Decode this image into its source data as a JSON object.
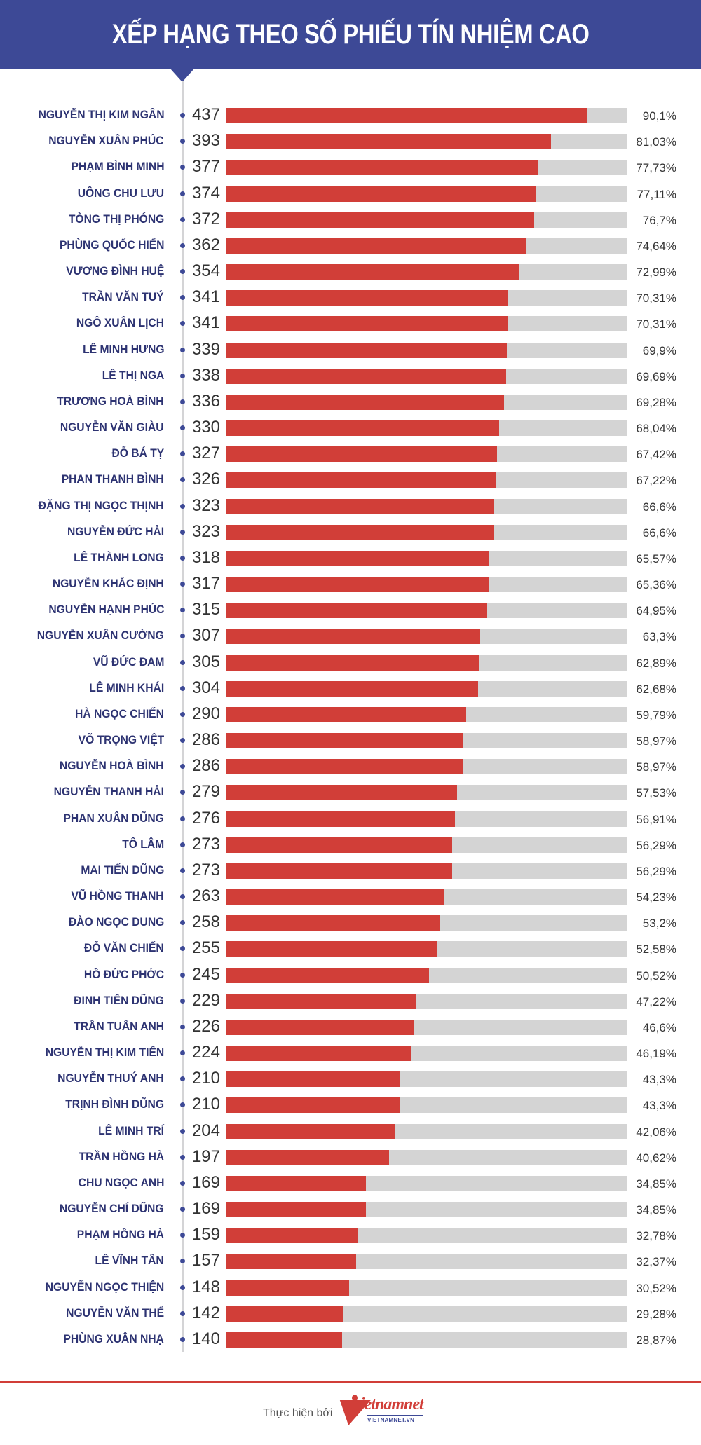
{
  "header": {
    "title": "XẾP HẠNG THEO SỐ PHIẾU TÍN NHIỆM CAO"
  },
  "colors": {
    "header_bg": "#3d4996",
    "bar_fill": "#d13e38",
    "bar_track": "#d4d4d4",
    "name_text": "#2d3372"
  },
  "chart_data": {
    "type": "bar",
    "orientation": "horizontal",
    "title": "XẾP HẠNG THEO SỐ PHIẾU TÍN NHIỆM CAO",
    "xlabel": "",
    "ylabel": "",
    "xlim": [
      0,
      485
    ],
    "grid": false,
    "categories": [
      "NGUYỄN THỊ KIM NGÂN",
      "NGUYỄN XUÂN PHÚC",
      "PHẠM BÌNH MINH",
      "UÔNG CHU LƯU",
      "TÒNG THỊ PHÓNG",
      "PHÙNG QUỐC HIỂN",
      "VƯƠNG ĐÌNH HUỆ",
      "TRẦN VĂN TUÝ",
      "NGÔ XUÂN LỊCH",
      "LÊ MINH HƯNG",
      "LÊ THỊ NGA",
      "TRƯƠNG HOÀ BÌNH",
      "NGUYỄN VĂN GIÀU",
      "ĐỖ BÁ TỴ",
      "PHAN THANH BÌNH",
      "ĐẶNG THỊ NGỌC THỊNH",
      "NGUYỄN ĐỨC HẢI",
      "LÊ THÀNH LONG",
      "NGUYỄN KHẮC ĐỊNH",
      "NGUYỄN HẠNH PHÚC",
      "NGUYỄN XUÂN CƯỜNG",
      "VŨ ĐỨC ĐAM",
      "LÊ MINH KHÁI",
      "HÀ NGỌC CHIẾN",
      "VÕ TRỌNG VIỆT",
      "NGUYỄN HOÀ BÌNH",
      "NGUYỄN THANH HẢI",
      "PHAN XUÂN DŨNG",
      "TÔ LÂM",
      "MAI TIẾN DŨNG",
      "VŨ HỒNG THANH",
      "ĐÀO NGỌC DUNG",
      "ĐỖ VĂN CHIẾN",
      "HỒ ĐỨC PHỚC",
      "ĐINH TIẾN DŨNG",
      "TRẦN TUẤN ANH",
      "NGUYỄN THỊ KIM TIẾN",
      "NGUYỄN THUÝ ANH",
      "TRỊNH ĐÌNH DŨNG",
      "LÊ MINH TRÍ",
      "TRẦN HỒNG HÀ",
      "CHU NGỌC ANH",
      "NGUYỄN CHÍ DŨNG",
      "PHẠM HỒNG HÀ",
      "LÊ VĨNH TÂN",
      "NGUYỄN NGỌC THIỆN",
      "NGUYỄN VĂN THỂ",
      "PHÙNG XUÂN NHẠ"
    ],
    "values": [
      437,
      393,
      377,
      374,
      372,
      362,
      354,
      341,
      341,
      339,
      338,
      336,
      330,
      327,
      326,
      323,
      323,
      318,
      317,
      315,
      307,
      305,
      304,
      290,
      286,
      286,
      279,
      276,
      273,
      273,
      263,
      258,
      255,
      245,
      229,
      226,
      224,
      210,
      210,
      204,
      197,
      169,
      169,
      159,
      157,
      148,
      142,
      140
    ],
    "percent_labels": [
      "90,1%",
      "81,03%",
      "77,73%",
      "77,11%",
      "76,7%",
      "74,64%",
      "72,99%",
      "70,31%",
      "70,31%",
      "69,9%",
      "69,69%",
      "69,28%",
      "68,04%",
      "67,42%",
      "67,22%",
      "66,6%",
      "66,6%",
      "65,57%",
      "65,36%",
      "64,95%",
      "63,3%",
      "62,89%",
      "62,68%",
      "59,79%",
      "58,97%",
      "58,97%",
      "57,53%",
      "56,91%",
      "56,29%",
      "56,29%",
      "54,23%",
      "53,2%",
      "52,58%",
      "50,52%",
      "47,22%",
      "46,6%",
      "46,19%",
      "43,3%",
      "43,3%",
      "42,06%",
      "40,62%",
      "34,85%",
      "34,85%",
      "32,78%",
      "32,37%",
      "30,52%",
      "29,28%",
      "28,87%"
    ]
  },
  "footer": {
    "credit": "Thực hiện bởi",
    "logo_text": "ietnamnet",
    "logo_domain": "VIETNAMNET.VN"
  }
}
